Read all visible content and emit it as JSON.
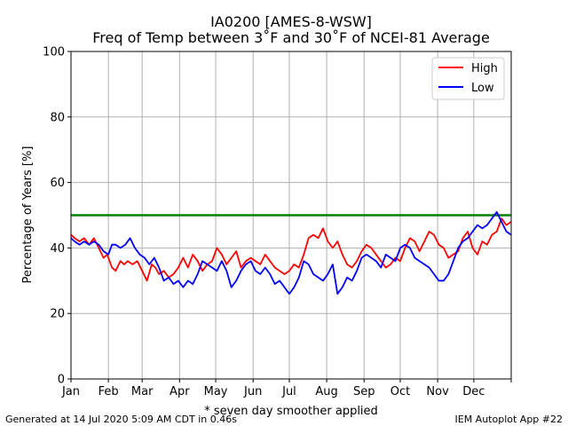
{
  "figure": {
    "title_line1": "IA0200 [AMES-8-WSW]",
    "title_line2": "Freq of Temp between 3˚F and 30˚F of NCEI-81 Average",
    "footer_left": "Generated at 14 Jul 2020 5:09 AM CDT in 0.46s",
    "footer_right": "IEM Autoplot App #22"
  },
  "chart_data": {
    "type": "line",
    "title": "IA0200 [AMES-8-WSW]\nFreq of Temp between 3˚F and 30˚F of NCEI-81 Average",
    "xlabel": "* seven day smoother applied",
    "ylabel": "Percentage of Years [%]",
    "x_axis": "day of year",
    "xlim": [
      1,
      366
    ],
    "ylim": [
      0,
      100
    ],
    "yticks": [
      0,
      20,
      40,
      60,
      80,
      100
    ],
    "month_ticks": [
      {
        "label": "Jan",
        "day": 1
      },
      {
        "label": "Feb",
        "day": 32
      },
      {
        "label": "Mar",
        "day": 60
      },
      {
        "label": "Apr",
        "day": 91
      },
      {
        "label": "May",
        "day": 121
      },
      {
        "label": "Jun",
        "day": 152
      },
      {
        "label": "Jul",
        "day": 182
      },
      {
        "label": "Aug",
        "day": 213
      },
      {
        "label": "Sep",
        "day": 244
      },
      {
        "label": "Oct",
        "day": 274
      },
      {
        "label": "Nov",
        "day": 305
      },
      {
        "label": "Dec",
        "day": 335
      },
      {
        "label": "",
        "day": 366
      }
    ],
    "grid": true,
    "legend_position": "upper-right",
    "reference_line": {
      "y": 50,
      "color": "#008000"
    },
    "series": [
      {
        "name": "High",
        "color": "#ff0000",
        "points": [
          [
            1,
            44
          ],
          [
            4,
            43
          ],
          [
            8,
            42
          ],
          [
            12,
            43
          ],
          [
            16,
            41
          ],
          [
            20,
            43
          ],
          [
            24,
            40
          ],
          [
            28,
            37
          ],
          [
            31,
            38
          ],
          [
            35,
            34
          ],
          [
            38,
            33
          ],
          [
            42,
            36
          ],
          [
            45,
            35
          ],
          [
            48,
            36
          ],
          [
            52,
            35
          ],
          [
            56,
            36
          ],
          [
            60,
            33
          ],
          [
            64,
            30
          ],
          [
            68,
            35
          ],
          [
            71,
            34
          ],
          [
            74,
            32
          ],
          [
            78,
            33
          ],
          [
            82,
            31
          ],
          [
            86,
            32
          ],
          [
            90,
            34
          ],
          [
            94,
            37
          ],
          [
            98,
            34
          ],
          [
            102,
            38
          ],
          [
            106,
            36
          ],
          [
            110,
            33
          ],
          [
            114,
            35
          ],
          [
            118,
            36
          ],
          [
            122,
            40
          ],
          [
            126,
            38
          ],
          [
            130,
            35
          ],
          [
            134,
            37
          ],
          [
            138,
            39
          ],
          [
            142,
            34
          ],
          [
            146,
            36
          ],
          [
            150,
            37
          ],
          [
            154,
            36
          ],
          [
            158,
            35
          ],
          [
            162,
            38
          ],
          [
            166,
            36
          ],
          [
            170,
            34
          ],
          [
            174,
            33
          ],
          [
            178,
            32
          ],
          [
            182,
            33
          ],
          [
            186,
            35
          ],
          [
            190,
            34
          ],
          [
            194,
            38
          ],
          [
            198,
            43
          ],
          [
            202,
            44
          ],
          [
            206,
            43
          ],
          [
            210,
            46
          ],
          [
            214,
            42
          ],
          [
            218,
            40
          ],
          [
            222,
            42
          ],
          [
            226,
            38
          ],
          [
            230,
            35
          ],
          [
            234,
            34
          ],
          [
            238,
            36
          ],
          [
            242,
            39
          ],
          [
            246,
            41
          ],
          [
            250,
            40
          ],
          [
            254,
            38
          ],
          [
            258,
            36
          ],
          [
            262,
            34
          ],
          [
            266,
            35
          ],
          [
            270,
            37
          ],
          [
            274,
            36
          ],
          [
            278,
            40
          ],
          [
            282,
            43
          ],
          [
            286,
            42
          ],
          [
            290,
            39
          ],
          [
            294,
            42
          ],
          [
            298,
            45
          ],
          [
            302,
            44
          ],
          [
            306,
            41
          ],
          [
            310,
            40
          ],
          [
            314,
            37
          ],
          [
            318,
            38
          ],
          [
            322,
            39
          ],
          [
            326,
            43
          ],
          [
            330,
            45
          ],
          [
            334,
            40
          ],
          [
            338,
            38
          ],
          [
            342,
            42
          ],
          [
            346,
            41
          ],
          [
            350,
            44
          ],
          [
            354,
            45
          ],
          [
            358,
            49
          ],
          [
            362,
            47
          ],
          [
            366,
            48
          ]
        ]
      },
      {
        "name": "Low",
        "color": "#0000ff",
        "points": [
          [
            1,
            43
          ],
          [
            4,
            42
          ],
          [
            8,
            41
          ],
          [
            12,
            42
          ],
          [
            16,
            41
          ],
          [
            20,
            42
          ],
          [
            24,
            41
          ],
          [
            28,
            39
          ],
          [
            32,
            38
          ],
          [
            35,
            41
          ],
          [
            38,
            41
          ],
          [
            42,
            40
          ],
          [
            46,
            41
          ],
          [
            50,
            43
          ],
          [
            54,
            40
          ],
          [
            58,
            38
          ],
          [
            62,
            37
          ],
          [
            66,
            35
          ],
          [
            70,
            37
          ],
          [
            74,
            34
          ],
          [
            78,
            30
          ],
          [
            82,
            31
          ],
          [
            86,
            29
          ],
          [
            90,
            30
          ],
          [
            94,
            28
          ],
          [
            98,
            30
          ],
          [
            102,
            29
          ],
          [
            106,
            32
          ],
          [
            110,
            36
          ],
          [
            114,
            35
          ],
          [
            118,
            34
          ],
          [
            122,
            33
          ],
          [
            126,
            36
          ],
          [
            130,
            33
          ],
          [
            134,
            28
          ],
          [
            138,
            30
          ],
          [
            142,
            33
          ],
          [
            146,
            35
          ],
          [
            150,
            36
          ],
          [
            154,
            33
          ],
          [
            158,
            32
          ],
          [
            162,
            34
          ],
          [
            166,
            32
          ],
          [
            170,
            29
          ],
          [
            174,
            30
          ],
          [
            178,
            28
          ],
          [
            182,
            26
          ],
          [
            186,
            28
          ],
          [
            190,
            31
          ],
          [
            194,
            36
          ],
          [
            198,
            35
          ],
          [
            202,
            32
          ],
          [
            206,
            31
          ],
          [
            210,
            30
          ],
          [
            214,
            32
          ],
          [
            218,
            35
          ],
          [
            222,
            26
          ],
          [
            226,
            28
          ],
          [
            230,
            31
          ],
          [
            234,
            30
          ],
          [
            238,
            33
          ],
          [
            242,
            37
          ],
          [
            246,
            38
          ],
          [
            250,
            37
          ],
          [
            254,
            36
          ],
          [
            258,
            34
          ],
          [
            262,
            38
          ],
          [
            266,
            37
          ],
          [
            270,
            36
          ],
          [
            274,
            40
          ],
          [
            278,
            41
          ],
          [
            282,
            40
          ],
          [
            286,
            37
          ],
          [
            290,
            36
          ],
          [
            294,
            35
          ],
          [
            298,
            34
          ],
          [
            302,
            32
          ],
          [
            306,
            30
          ],
          [
            310,
            30
          ],
          [
            314,
            32
          ],
          [
            318,
            36
          ],
          [
            322,
            40
          ],
          [
            326,
            42
          ],
          [
            330,
            43
          ],
          [
            334,
            45
          ],
          [
            338,
            47
          ],
          [
            342,
            46
          ],
          [
            346,
            47
          ],
          [
            350,
            49
          ],
          [
            354,
            51
          ],
          [
            358,
            48
          ],
          [
            362,
            45
          ],
          [
            366,
            44
          ]
        ]
      }
    ]
  }
}
